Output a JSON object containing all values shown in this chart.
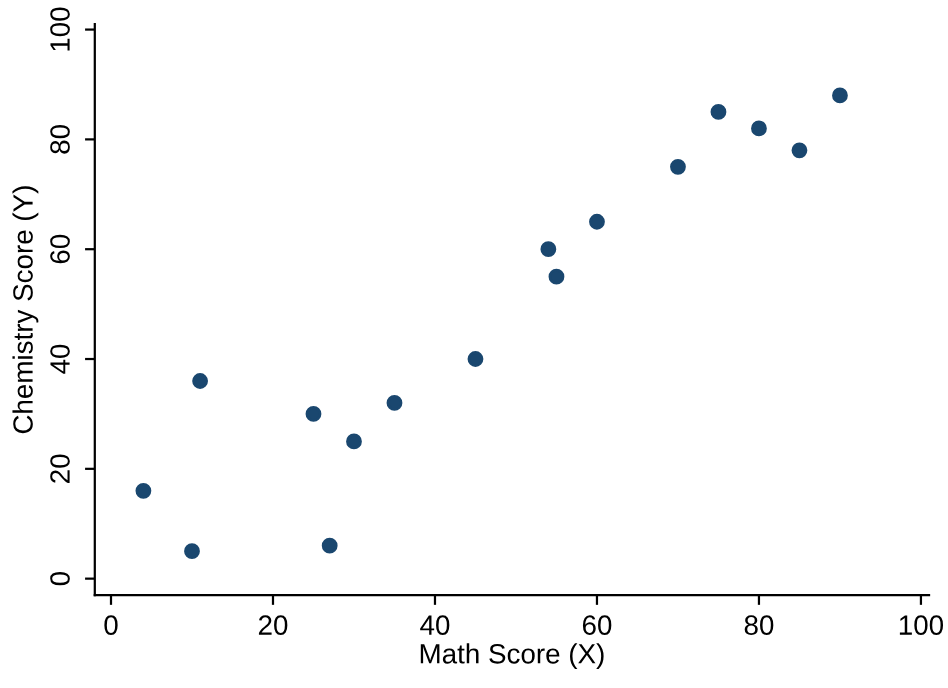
{
  "chart_data": {
    "type": "scatter",
    "xlabel": "Math Score (X)",
    "ylabel": "Chemistry Score (Y)",
    "x": [
      4,
      10,
      11,
      25,
      27,
      30,
      35,
      45,
      54,
      55,
      60,
      70,
      75,
      80,
      85,
      90
    ],
    "series": [
      {
        "color": "#1a476f",
        "values": [
          16,
          5,
          36,
          30,
          6,
          25,
          32,
          40,
          60,
          55,
          65,
          75,
          85,
          82,
          78,
          88
        ]
      }
    ],
    "xlim": [
      -2,
      101
    ],
    "ylim": [
      -3,
      101
    ],
    "xticks": [
      0,
      20,
      40,
      60,
      80,
      100
    ],
    "yticks": [
      0,
      20,
      40,
      60,
      80,
      100
    ],
    "grid": false,
    "marker": "circle"
  }
}
